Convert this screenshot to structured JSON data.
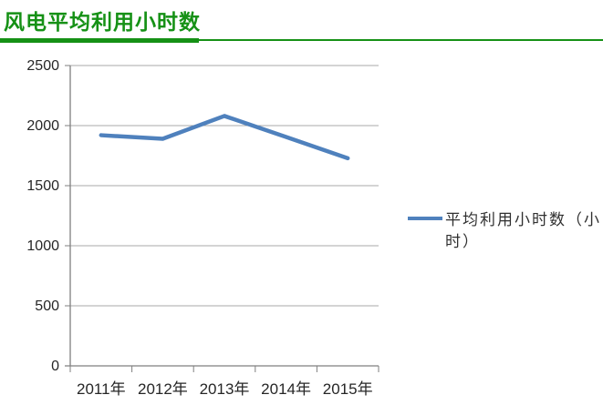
{
  "header": {
    "title": "风电平均利用小时数",
    "accent_color": "#169116"
  },
  "chart_data": {
    "type": "line",
    "title": "风电平均利用小时数",
    "categories": [
      "2011年",
      "2012年",
      "2013年",
      "2014年",
      "2015年"
    ],
    "series": [
      {
        "name": "平均利用小时数（小时）",
        "values": [
          1920,
          1890,
          2080,
          1905,
          1728
        ]
      }
    ],
    "xlabel": "",
    "ylabel": "",
    "ylim": [
      0,
      2500
    ],
    "y_ticks": [
      "0",
      "500",
      "1000",
      "1500",
      "2000",
      "2500"
    ],
    "grid": true,
    "legend_position": "right",
    "colors": {
      "line": "#4F81BD",
      "grid": "#A8A8A8",
      "axis": "#7F7F7F",
      "tick_text": "#262626",
      "background": "#FFFFFF"
    }
  }
}
